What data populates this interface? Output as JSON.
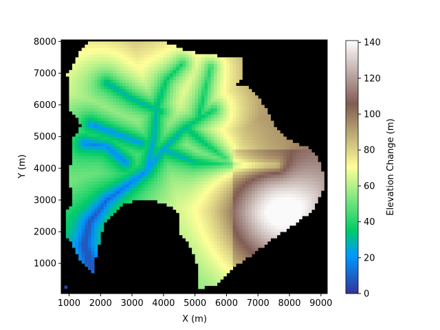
{
  "chart_data": {
    "type": "heatmap",
    "title": "",
    "xlabel": "X (m)",
    "ylabel": "Y (m)",
    "xlim": [
      750,
      9200
    ],
    "ylim": [
      50,
      8050
    ],
    "x_ticks": [
      1000,
      2000,
      3000,
      4000,
      5000,
      6000,
      7000,
      8000,
      9000
    ],
    "y_ticks": [
      1000,
      2000,
      3000,
      4000,
      5000,
      6000,
      7000,
      8000
    ],
    "background": "#000000",
    "colormap": "terrain",
    "colorbar": {
      "label": "Elevation Change (m)",
      "range": [
        0,
        141
      ],
      "ticks": [
        0,
        20,
        40,
        60,
        80,
        100,
        120,
        140
      ]
    },
    "value_range": [
      0,
      141
    ]
  }
}
